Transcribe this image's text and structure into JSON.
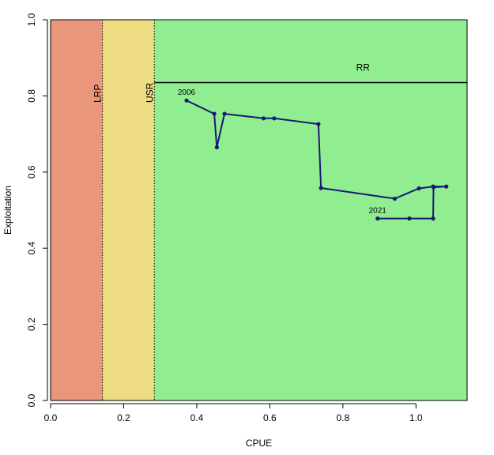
{
  "chart_data": {
    "type": "line",
    "xlabel": "CPUE",
    "ylabel": "Exploitation",
    "xlim": [
      0.0,
      1.14
    ],
    "ylim": [
      0.0,
      1.0
    ],
    "x_ticks": [
      0.0,
      0.2,
      0.4,
      0.6,
      0.8,
      1.0
    ],
    "y_ticks": [
      0.0,
      0.2,
      0.4,
      0.6,
      0.8,
      1.0
    ],
    "x_tick_labels": [
      "0.0",
      "0.2",
      "0.4",
      "0.6",
      "0.8",
      "1.0"
    ],
    "y_tick_labels": [
      "0.0",
      "0.2",
      "0.4",
      "0.6",
      "0.8",
      "1.0"
    ],
    "zones": [
      {
        "x_from": 0.0,
        "x_to": 0.142,
        "color": "#E9967A"
      },
      {
        "x_from": 0.142,
        "x_to": 0.284,
        "color": "#EEDC82"
      },
      {
        "x_from": 0.284,
        "x_to": 1.14,
        "color": "#90EE90"
      }
    ],
    "reference_lines": [
      {
        "label": "LRP",
        "orientation": "vertical",
        "value": 0.142
      },
      {
        "label": "USR",
        "orientation": "vertical",
        "value": 0.284
      },
      {
        "label": "RR",
        "orientation": "horizontal",
        "value": 0.835
      }
    ],
    "series": [
      {
        "color": "#191970",
        "x": [
          0.372,
          0.448,
          0.455,
          0.476,
          0.583,
          0.612,
          0.733,
          0.74,
          0.942,
          1.008,
          1.047,
          1.083,
          1.048,
          1.047,
          0.982,
          0.895
        ],
        "y": [
          0.788,
          0.753,
          0.665,
          0.753,
          0.741,
          0.741,
          0.726,
          0.558,
          0.53,
          0.557,
          0.562,
          0.562,
          0.56,
          0.478,
          0.478,
          0.478
        ]
      }
    ],
    "annotations": [
      {
        "text": "2006",
        "x": 0.372,
        "y": 0.788
      },
      {
        "text": "2021",
        "x": 0.895,
        "y": 0.478
      }
    ],
    "grid": false
  }
}
